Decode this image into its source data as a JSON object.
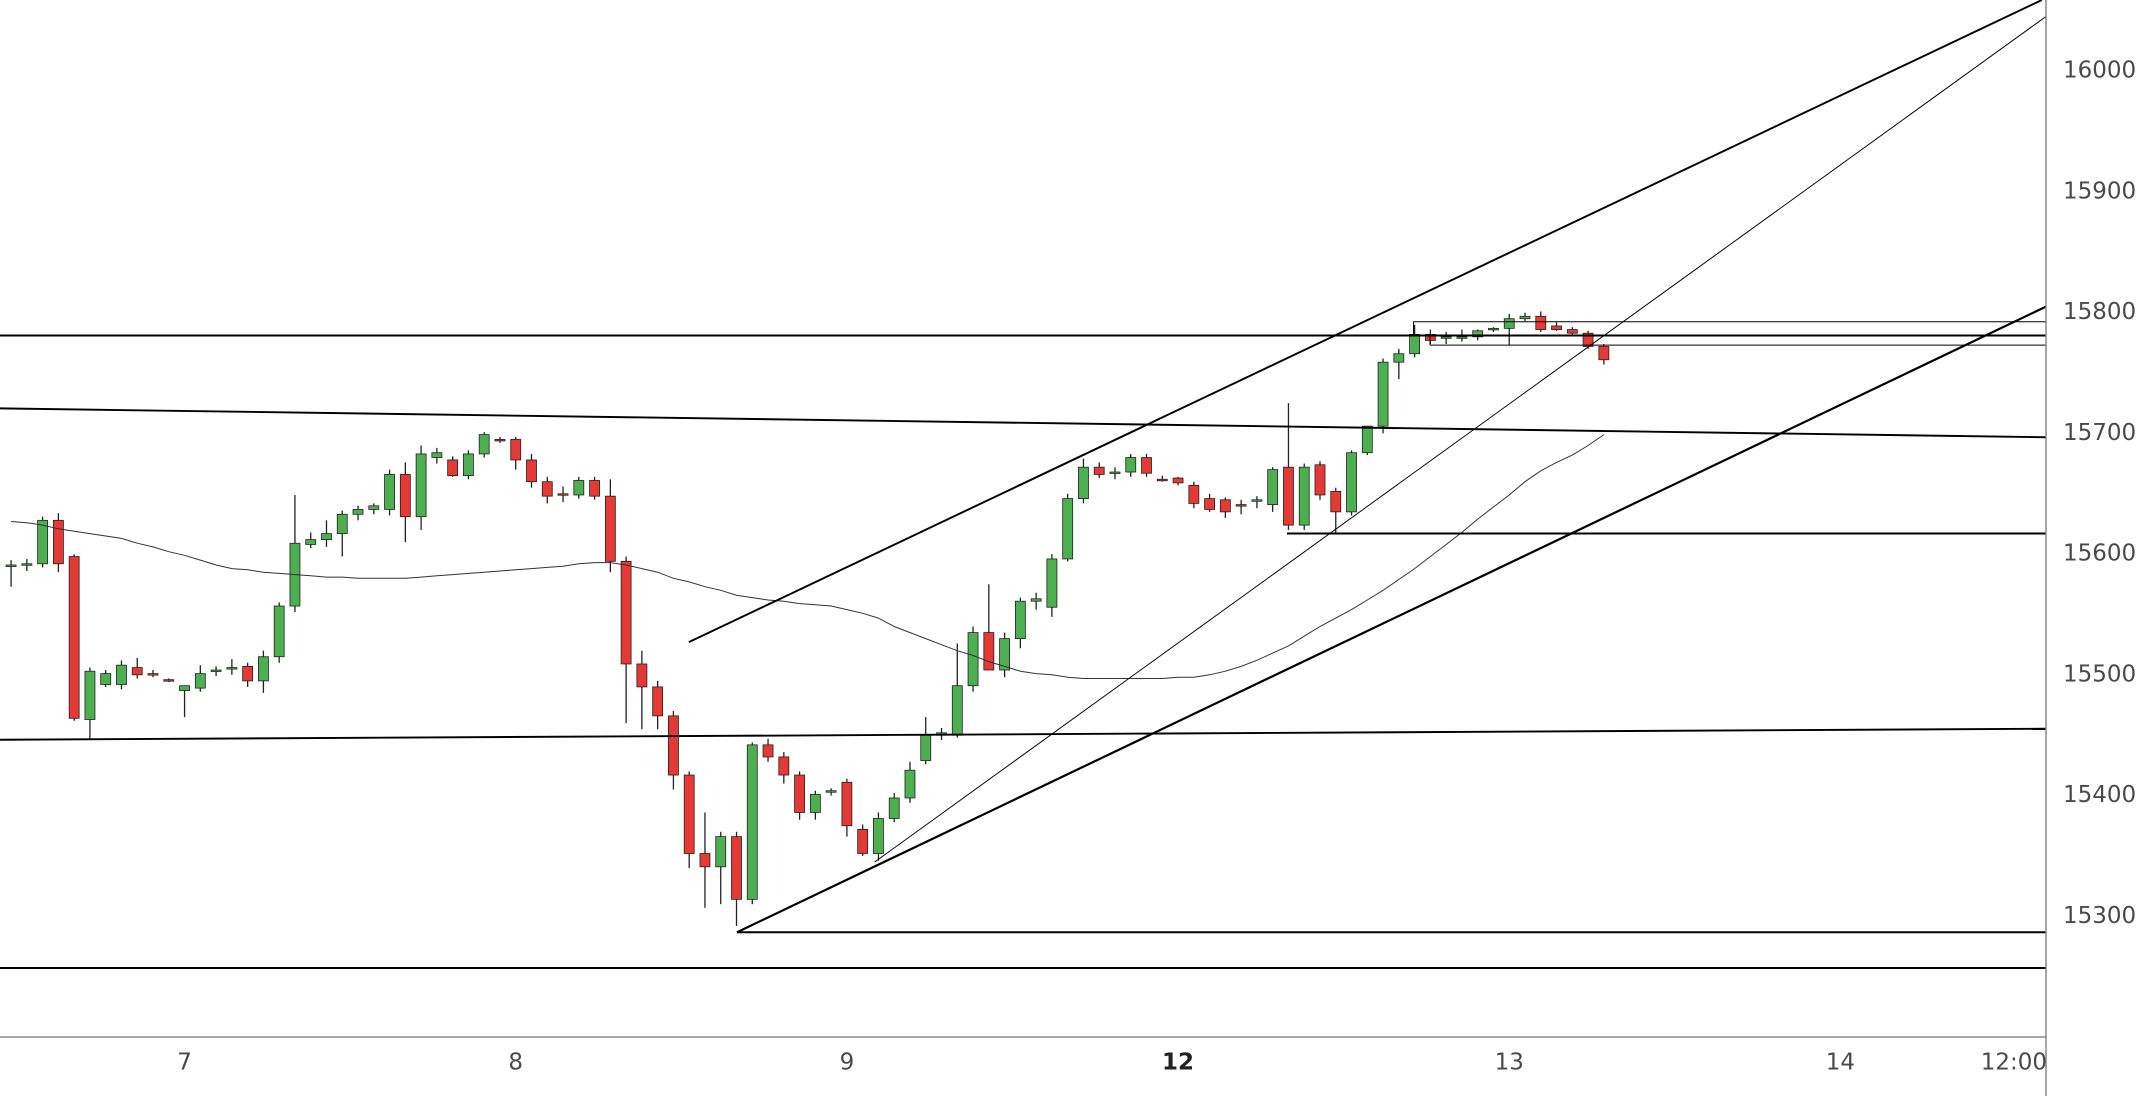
{
  "chart_data": {
    "type": "candlestick",
    "categories": [
      null,
      null,
      null,
      null,
      null,
      null,
      null,
      null,
      null,
      null,
      null,
      "7",
      null,
      null,
      null,
      null,
      null,
      null,
      null,
      null,
      null,
      null,
      null,
      null,
      null,
      null,
      null,
      null,
      null,
      null,
      null,
      null,
      "8",
      null,
      null,
      null,
      null,
      null,
      null,
      null,
      null,
      null,
      null,
      null,
      null,
      null,
      null,
      null,
      null,
      null,
      null,
      null,
      null,
      "9",
      null,
      null,
      null,
      null,
      null,
      null,
      null,
      null,
      null,
      null,
      null,
      null,
      null,
      null,
      null,
      null,
      null,
      null,
      null,
      null,
      "12",
      null,
      null,
      null,
      null,
      null,
      null,
      null,
      null,
      null,
      null,
      null,
      null,
      null,
      null,
      null,
      null,
      null,
      null,
      null,
      null,
      "13",
      null,
      null,
      null,
      null,
      null,
      null,
      null,
      null,
      null,
      null,
      null,
      null,
      null,
      null,
      null,
      null,
      null,
      null,
      null,
      null,
      "14",
      null,
      null,
      null,
      null,
      null,
      null,
      null,
      null,
      null,
      null,
      "12:00",
      null,
      null
    ],
    "open": [
      15590,
      15591,
      15592,
      15628,
      15598,
      15463,
      15492,
      15492,
      15506,
      15501,
      15496,
      15487,
      15489,
      15503,
      15505,
      15507,
      15495,
      15515,
      15557,
      15608,
      15612,
      15617,
      15633,
      15637,
      15637,
      15666,
      15631,
      15680,
      15678,
      15665,
      15683,
      15695,
      15695,
      15678,
      15660,
      15650,
      15649,
      15661,
      15648,
      15594,
      15509,
      15490,
      15466,
      15417,
      15352,
      15341,
      15366,
      15314,
      15442,
      15432,
      15417,
      15386,
      15403,
      15411,
      15372,
      15352,
      15381,
      15398,
      15429,
      15450,
      15450,
      15491,
      15535,
      15504,
      15530,
      15561,
      15556,
      15596,
      15646,
      15672,
      15667,
      15668,
      15680,
      15662,
      15663,
      15657,
      15646,
      15645,
      15641,
      15644,
      15641,
      15672,
      15624,
      15674,
      15652,
      15635,
      15684,
      15706,
      15759,
      15766,
      15782,
      15779,
      15779,
      15780,
      15786,
      15787,
      15795,
      15797,
      15789,
      15786,
      15783,
      15772,
      null,
      null,
      null,
      null,
      null,
      null,
      null,
      null,
      null,
      null,
      null,
      null,
      null,
      null,
      null,
      null,
      null,
      null,
      null,
      null,
      null,
      null,
      null,
      null,
      null,
      null,
      null,
      null
    ],
    "high": [
      15595,
      15596,
      15631,
      15634,
      15600,
      15506,
      15504,
      15512,
      15514,
      15504,
      15497,
      15491,
      15508,
      15507,
      15513,
      15510,
      15520,
      15560,
      15649,
      15618,
      15628,
      15636,
      15640,
      15642,
      15670,
      15676,
      15690,
      15688,
      15681,
      15686,
      15701,
      15697,
      15697,
      15683,
      15664,
      15656,
      15664,
      15664,
      15662,
      15598,
      15520,
      15495,
      15470,
      15420,
      15386,
      15370,
      15370,
      15444,
      15447,
      15436,
      15420,
      15404,
      15406,
      15414,
      15376,
      15386,
      15402,
      15428,
      15465,
      15456,
      15526,
      15540,
      15575,
      15535,
      15564,
      15568,
      15600,
      15650,
      15679,
      15676,
      15672,
      15683,
      15683,
      15665,
      15664,
      15660,
      15650,
      15647,
      15645,
      15648,
      15672,
      15725,
      15675,
      15677,
      15655,
      15686,
      15706,
      15762,
      15770,
      15790,
      15786,
      15784,
      15786,
      15786,
      15788,
      15799,
      15800,
      15801,
      15792,
      15788,
      15785,
      15774,
      null,
      null,
      null,
      null,
      null,
      null,
      null,
      null,
      null,
      null,
      null,
      null,
      null,
      null,
      null,
      null,
      null,
      null,
      null,
      null,
      null,
      null,
      null,
      null,
      null,
      null,
      null,
      null
    ],
    "low": [
      15573,
      15586,
      15589,
      15585,
      15462,
      15446,
      15490,
      15488,
      15497,
      15498,
      15494,
      15465,
      15486,
      15499,
      15500,
      15490,
      15485,
      15510,
      15552,
      15605,
      15606,
      15598,
      15628,
      15633,
      15632,
      15610,
      15620,
      15675,
      15664,
      15662,
      15680,
      15692,
      15670,
      15655,
      15642,
      15643,
      15646,
      15645,
      15585,
      15460,
      15455,
      15455,
      15405,
      15340,
      15307,
      15310,
      15292,
      15310,
      15428,
      15410,
      15380,
      15380,
      15400,
      15366,
      15350,
      15346,
      15378,
      15394,
      15426,
      15446,
      15448,
      15486,
      15504,
      15498,
      15522,
      15554,
      15548,
      15594,
      15642,
      15663,
      15662,
      15664,
      15664,
      15660,
      15657,
      15638,
      15635,
      15630,
      15633,
      15638,
      15635,
      15620,
      15620,
      15645,
      15618,
      15632,
      15682,
      15700,
      15745,
      15763,
      15774,
      15774,
      15776,
      15777,
      15784,
      15773,
      15793,
      15784,
      15785,
      15781,
      15770,
      15757,
      null,
      null,
      null,
      null,
      null,
      null,
      null,
      null,
      null,
      null,
      null,
      null,
      null,
      null,
      null,
      null,
      null,
      null,
      null,
      null,
      null,
      null,
      null,
      null,
      null,
      null,
      null,
      null
    ],
    "close": [
      15591,
      15592,
      15628,
      15592,
      15464,
      15503,
      15501,
      15508,
      15500,
      15500,
      15495,
      15491,
      15501,
      15504,
      15506,
      15495,
      15515,
      15557,
      15609,
      15612,
      15617,
      15633,
      15637,
      15640,
      15666,
      15631,
      15683,
      15684,
      15665,
      15683,
      15699,
      15694,
      15678,
      15660,
      15648,
      15649,
      15661,
      15648,
      15594,
      15509,
      15490,
      15466,
      15417,
      15352,
      15341,
      15366,
      15314,
      15442,
      15432,
      15417,
      15386,
      15401,
      15404,
      15375,
      15352,
      15381,
      15398,
      15421,
      15450,
      15452,
      15491,
      15535,
      15504,
      15530,
      15561,
      15563,
      15596,
      15646,
      15672,
      15666,
      15668,
      15680,
      15667,
      15661,
      15659,
      15642,
      15637,
      15635,
      15640,
      15645,
      15670,
      15624,
      15672,
      15649,
      15635,
      15684,
      15706,
      15759,
      15766,
      15782,
      15777,
      15780,
      15780,
      15785,
      15787,
      15795,
      15797,
      15786,
      15786,
      15783,
      15772,
      15761,
      null,
      null,
      null,
      null,
      null,
      null,
      null,
      null,
      null,
      null,
      null,
      null,
      null,
      null,
      null,
      null,
      null,
      null,
      null,
      null,
      null,
      null,
      null,
      null,
      null,
      null,
      null,
      null
    ],
    "moving_average": [
      15627,
      15626,
      15624,
      15621,
      15619,
      15617,
      15615,
      15613,
      15609,
      15606,
      15602,
      15599,
      15595,
      15591,
      15588,
      15587,
      15585,
      15584,
      15583,
      15582,
      15581,
      15581,
      15580,
      15580,
      15580,
      15580,
      15581,
      15582,
      15583,
      15584,
      15585,
      15586,
      15587,
      15588,
      15589,
      15590,
      15592,
      15593,
      15593,
      15591,
      15588,
      15585,
      15580,
      15577,
      15573,
      15570,
      15566,
      15564,
      15562,
      15561,
      15559,
      15558,
      15557,
      15554,
      15551,
      15547,
      15540,
      15535,
      15530,
      15525,
      15520,
      15516,
      15511,
      15507,
      15503,
      15501,
      15500,
      15498,
      15497,
      15497,
      15497,
      15497,
      15497,
      15497,
      15498,
      15498,
      15500,
      15503,
      15507,
      15512,
      15518,
      15524,
      15532,
      15540,
      15547,
      15554,
      15562,
      15570,
      15579,
      15588,
      15598,
      15608,
      15618,
      15629,
      15639,
      15649,
      15660,
      15669,
      15676,
      15682,
      15690,
      15699,
      null,
      null,
      null,
      null,
      null,
      null,
      null,
      null,
      null,
      null,
      null,
      null,
      null,
      null,
      null,
      null,
      null,
      null,
      null,
      null,
      null,
      null,
      null,
      null,
      null,
      null,
      null,
      null
    ],
    "up_color": "#4caf50",
    "down_color": "#e53935",
    "ma_color": "#333333",
    "ylim": [
      15200,
      16059
    ],
    "yticks": [
      15300,
      15400,
      15500,
      15600,
      15700,
      15800,
      15900,
      16000
    ],
    "grid": false
  }
}
